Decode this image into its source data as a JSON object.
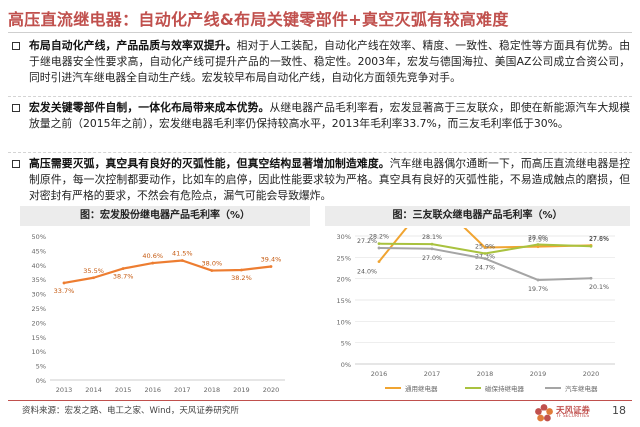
{
  "title": "高压直流继电器：自动化产线&布局关键零部件+真空灭弧有较高难度",
  "bullets": [
    {
      "bold": "布局自动化产线，产品品质与效率双提升。",
      "text": "相对于人工装配，自动化产线在效率、精度、一致性、稳定性等方面具有优势。由于继电器安全性要求高，自动化产线可提升产品的一致性、稳定性。2003年，宏发与德国海拉、美国AZ公司成立合资公司，同时引进汽车继电器全自动生产线。宏发较早布局自动化产线，自动化方面领先竞争对手。"
    },
    {
      "bold": "宏发关键零部件自制，一体化布局带来成本优势。",
      "text": "从继电器产品毛利率看，宏发显著高于三友联众，即使在新能源汽车大规模放量之前（2015年之前），宏发继电器毛利率仍保持较高水平，2013年毛利率33.7%，而三友毛利率低于30%。"
    },
    {
      "bold": "高压需要灭弧，真空具有良好的灭弧性能，但真空结构显著增加制造难度。",
      "text": "汽车继电器偶尔通断一下，而高压直流继电器是控制原件，每一次控制都要动作，比如车的启停，因此性能要求较为严格。真空具有良好的灭弧性能，不易造成触点的磨损，但对密封有严格的要求，不然会有危险点，漏气可能会导致爆炸。"
    }
  ],
  "chart_data": [
    {
      "type": "line",
      "title": "图：宏发股份继电器产品毛利率（%）",
      "x": [
        "2013",
        "2014",
        "2015",
        "2016",
        "2017",
        "2018",
        "2019",
        "2020"
      ],
      "series": [
        {
          "values": [
            33.7,
            35.5,
            38.7,
            40.6,
            41.5,
            38.0,
            38.2,
            39.4
          ],
          "labels": [
            "33.7%",
            "35.5%",
            "38.7%",
            "40.6%",
            "41.5%",
            "38.0%",
            "38.2%",
            "39.4%"
          ]
        }
      ],
      "ylim": [
        0,
        50
      ],
      "yticks": [
        "0%",
        "5%",
        "10%",
        "15%",
        "20%",
        "25%",
        "30%",
        "35%",
        "40%",
        "45%",
        "50%"
      ],
      "grid": false,
      "color": "#ed7d31"
    },
    {
      "type": "line",
      "title": "图：三友联众继电器产品毛利率（%）",
      "x": [
        "2016",
        "2017",
        "2018",
        "2019",
        "2020"
      ],
      "series": [
        {
          "name": "通用继电器",
          "values": [
            24.0,
            39.3,
            27.3,
            27.5,
            27.8
          ],
          "labels": [
            "24.0%",
            "39.3%",
            "27.3%",
            "27.5%",
            "27.8%"
          ],
          "color": "#f0a431"
        },
        {
          "name": "磁保持继电器",
          "values": [
            28.2,
            28.1,
            25.9,
            28.0,
            27.6
          ],
          "labels": [
            "28.2%",
            "28.1%",
            "25.9%",
            "28.0%",
            "27.6%"
          ],
          "color": "#a9c23f"
        },
        {
          "name": "汽车继电器",
          "values": [
            27.2,
            27.0,
            24.7,
            19.7,
            20.1
          ],
          "labels": [
            "27.2%",
            "27.0%",
            "24.7%",
            "19.7%",
            "20.1%"
          ],
          "color": "#a5a5a5"
        }
      ],
      "ylim": [
        0,
        30
      ],
      "yticks": [
        "0%",
        "5%",
        "10%",
        "15%",
        "20%",
        "25%",
        "30%"
      ],
      "grid": true,
      "legend": "bottom"
    }
  ],
  "footer": {
    "source": "资料来源：宏发之路、电工之家、Wind，天风证券研究所",
    "logo_text": "天风证券",
    "logo_sub": "TF SECURITIES",
    "page": "18"
  }
}
